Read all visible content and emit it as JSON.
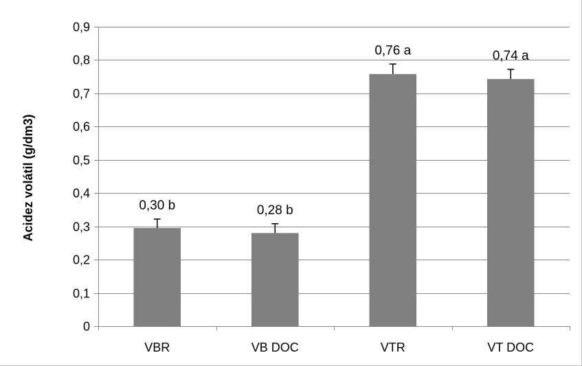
{
  "chart_data": {
    "type": "bar",
    "title": "",
    "xlabel": "",
    "ylabel": "Acidez volátil (g/dm3)",
    "categories": [
      "VBR",
      "VB DOC",
      "VTR",
      "VT DOC"
    ],
    "values": [
      0.295,
      0.28,
      0.758,
      0.743
    ],
    "error_upper": [
      0.322,
      0.308,
      0.788,
      0.772
    ],
    "data_labels": [
      "0,30  b",
      "0,28 b",
      "0,76 a",
      "0,74 a"
    ],
    "ylim": [
      0,
      0.9
    ],
    "yticks": [
      0,
      0.1,
      0.2,
      0.3,
      0.4,
      0.5,
      0.6,
      0.7,
      0.8,
      0.9
    ],
    "ytick_labels": [
      "0",
      "0,1",
      "0,2",
      "0,3",
      "0,4",
      "0,5",
      "0,6",
      "0,7",
      "0,8",
      "0,9"
    ],
    "grid": true,
    "legend": false,
    "bar_color": "#808080",
    "grid_color": "#868686",
    "axis_color": "#868686"
  }
}
